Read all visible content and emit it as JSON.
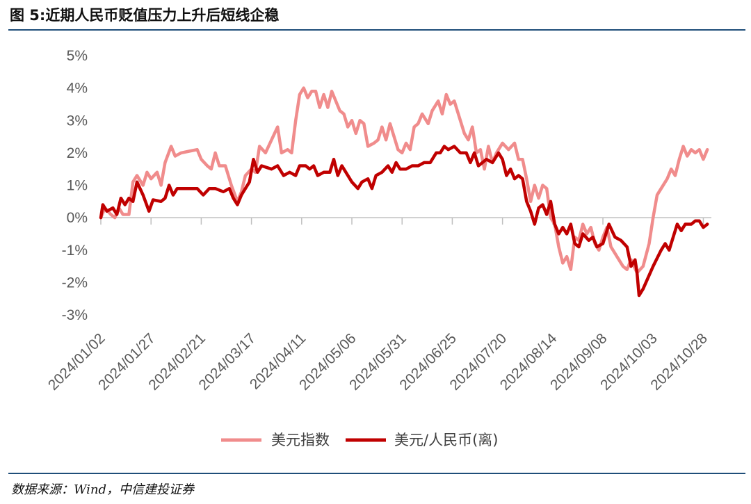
{
  "header": {
    "title": "图 5:近期人民币贬值压力上升后短线企稳"
  },
  "footer": {
    "source": "数据来源：Wind，中信建投证券"
  },
  "chart_data": {
    "type": "line",
    "title": "图 5:近期人民币贬值压力上升后短线企稳",
    "xlabel": "",
    "ylabel": "",
    "ylim": [
      -3,
      5
    ],
    "y_ticks": [
      "5%",
      "4%",
      "3%",
      "2%",
      "1%",
      "0%",
      "-1%",
      "-2%",
      "-3%"
    ],
    "x_ticks": [
      "2024/01/02",
      "2024/01/27",
      "2024/02/21",
      "2024/03/17",
      "2024/04/11",
      "2024/05/06",
      "2024/05/31",
      "2024/06/25",
      "2024/07/20",
      "2024/08/14",
      "2024/09/08",
      "2024/10/03",
      "2024/10/28"
    ],
    "x_range": [
      "2024/01/02",
      "2024/11/01"
    ],
    "grid": false,
    "legend_position": "bottom",
    "series": [
      {
        "name": "美元指数",
        "color": "#f08c8c",
        "points": [
          [
            "2024/01/02",
            0.0
          ],
          [
            "2024/01/04",
            0.3
          ],
          [
            "2024/01/07",
            0.1
          ],
          [
            "2024/01/09",
            0.0
          ],
          [
            "2024/01/11",
            0.3
          ],
          [
            "2024/01/13",
            0.1
          ],
          [
            "2024/01/16",
            0.1
          ],
          [
            "2024/01/18",
            1.1
          ],
          [
            "2024/01/20",
            1.3
          ],
          [
            "2024/01/23",
            1.0
          ],
          [
            "2024/01/25",
            1.4
          ],
          [
            "2024/01/27",
            1.2
          ],
          [
            "2024/01/30",
            1.4
          ],
          [
            "2024/02/01",
            1.0
          ],
          [
            "2024/02/03",
            1.7
          ],
          [
            "2024/02/06",
            2.2
          ],
          [
            "2024/02/08",
            1.9
          ],
          [
            "2024/02/11",
            2.0
          ],
          [
            "2024/02/15",
            2.05
          ],
          [
            "2024/02/19",
            2.1
          ],
          [
            "2024/02/21",
            1.8
          ],
          [
            "2024/02/24",
            1.6
          ],
          [
            "2024/02/26",
            1.5
          ],
          [
            "2024/02/28",
            2.0
          ],
          [
            "2024/03/01",
            1.6
          ],
          [
            "2024/03/04",
            1.6
          ],
          [
            "2024/03/07",
            1.0
          ],
          [
            "2024/03/10",
            0.5
          ],
          [
            "2024/03/12",
            0.8
          ],
          [
            "2024/03/14",
            1.3
          ],
          [
            "2024/03/17",
            1.5
          ],
          [
            "2024/03/19",
            1.4
          ],
          [
            "2024/03/21",
            2.2
          ],
          [
            "2024/03/24",
            2.0
          ],
          [
            "2024/03/27",
            2.4
          ],
          [
            "2024/03/30",
            2.8
          ],
          [
            "2024/04/01",
            2.0
          ],
          [
            "2024/04/04",
            2.1
          ],
          [
            "2024/04/06",
            2.0
          ],
          [
            "2024/04/08",
            3.0
          ],
          [
            "2024/04/10",
            3.8
          ],
          [
            "2024/04/12",
            4.0
          ],
          [
            "2024/04/14",
            3.7
          ],
          [
            "2024/04/16",
            3.9
          ],
          [
            "2024/04/18",
            3.9
          ],
          [
            "2024/04/20",
            3.4
          ],
          [
            "2024/04/22",
            3.8
          ],
          [
            "2024/04/24",
            3.4
          ],
          [
            "2024/04/26",
            3.9
          ],
          [
            "2024/04/28",
            3.6
          ],
          [
            "2024/04/30",
            3.3
          ],
          [
            "2024/05/02",
            3.2
          ],
          [
            "2024/05/04",
            2.8
          ],
          [
            "2024/05/06",
            3.0
          ],
          [
            "2024/05/08",
            2.6
          ],
          [
            "2024/05/10",
            3.0
          ],
          [
            "2024/05/12",
            2.9
          ],
          [
            "2024/05/14",
            2.2
          ],
          [
            "2024/05/17",
            2.3
          ],
          [
            "2024/05/19",
            2.4
          ],
          [
            "2024/05/21",
            2.8
          ],
          [
            "2024/05/23",
            2.4
          ],
          [
            "2024/05/25",
            2.9
          ],
          [
            "2024/05/27",
            2.5
          ],
          [
            "2024/05/29",
            2.1
          ],
          [
            "2024/05/31",
            2.0
          ],
          [
            "2024/06/02",
            2.3
          ],
          [
            "2024/06/04",
            2.1
          ],
          [
            "2024/06/06",
            2.8
          ],
          [
            "2024/06/08",
            2.9
          ],
          [
            "2024/06/10",
            3.2
          ],
          [
            "2024/06/13",
            2.9
          ],
          [
            "2024/06/15",
            3.3
          ],
          [
            "2024/06/18",
            3.6
          ],
          [
            "2024/06/20",
            3.2
          ],
          [
            "2024/06/22",
            3.8
          ],
          [
            "2024/06/24",
            3.5
          ],
          [
            "2024/06/26",
            3.6
          ],
          [
            "2024/06/28",
            3.2
          ],
          [
            "2024/07/01",
            2.6
          ],
          [
            "2024/07/03",
            2.4
          ],
          [
            "2024/07/05",
            2.8
          ],
          [
            "2024/07/07",
            2.0
          ],
          [
            "2024/07/09",
            2.1
          ],
          [
            "2024/07/11",
            1.5
          ],
          [
            "2024/07/13",
            2.2
          ],
          [
            "2024/07/15",
            1.7
          ],
          [
            "2024/07/17",
            2.0
          ],
          [
            "2024/07/20",
            2.3
          ],
          [
            "2024/07/23",
            2.1
          ],
          [
            "2024/07/26",
            2.3
          ],
          [
            "2024/07/28",
            1.8
          ],
          [
            "2024/07/30",
            1.8
          ],
          [
            "2024/08/01",
            1.2
          ],
          [
            "2024/08/03",
            0.5
          ],
          [
            "2024/08/05",
            1.0
          ],
          [
            "2024/08/07",
            0.6
          ],
          [
            "2024/08/09",
            1.0
          ],
          [
            "2024/08/11",
            0.9
          ],
          [
            "2024/08/13",
            0.0
          ],
          [
            "2024/08/15",
            -0.2
          ],
          [
            "2024/08/17",
            -0.9
          ],
          [
            "2024/08/19",
            -1.4
          ],
          [
            "2024/08/21",
            -1.2
          ],
          [
            "2024/08/23",
            -1.6
          ],
          [
            "2024/08/25",
            -0.6
          ],
          [
            "2024/08/27",
            -0.7
          ],
          [
            "2024/08/29",
            -0.2
          ],
          [
            "2024/08/31",
            -0.5
          ],
          [
            "2024/09/02",
            -0.3
          ],
          [
            "2024/09/04",
            -0.8
          ],
          [
            "2024/09/06",
            -1.0
          ],
          [
            "2024/09/08",
            -0.6
          ],
          [
            "2024/09/10",
            -0.3
          ],
          [
            "2024/09/12",
            -0.9
          ],
          [
            "2024/09/14",
            -1.1
          ],
          [
            "2024/09/16",
            -1.3
          ],
          [
            "2024/09/18",
            -1.5
          ],
          [
            "2024/09/20",
            -1.6
          ],
          [
            "2024/09/22",
            -1.3
          ],
          [
            "2024/09/25",
            -1.7
          ],
          [
            "2024/09/28",
            -1.5
          ],
          [
            "2024/10/01",
            -0.8
          ],
          [
            "2024/10/03",
            0.0
          ],
          [
            "2024/10/05",
            0.7
          ],
          [
            "2024/10/08",
            1.0
          ],
          [
            "2024/10/10",
            1.2
          ],
          [
            "2024/10/12",
            1.5
          ],
          [
            "2024/10/14",
            1.3
          ],
          [
            "2024/10/16",
            1.8
          ],
          [
            "2024/10/18",
            2.2
          ],
          [
            "2024/10/20",
            1.9
          ],
          [
            "2024/10/22",
            2.1
          ],
          [
            "2024/10/24",
            2.0
          ],
          [
            "2024/10/26",
            2.1
          ],
          [
            "2024/10/28",
            1.8
          ],
          [
            "2024/10/30",
            2.1
          ]
        ]
      },
      {
        "name": "美元/人民币(离)",
        "color": "#c00000",
        "points": [
          [
            "2024/01/02",
            0.0
          ],
          [
            "2024/01/03",
            0.4
          ],
          [
            "2024/01/05",
            0.2
          ],
          [
            "2024/01/08",
            0.3
          ],
          [
            "2024/01/10",
            0.1
          ],
          [
            "2024/01/12",
            0.6
          ],
          [
            "2024/01/14",
            0.4
          ],
          [
            "2024/01/16",
            0.6
          ],
          [
            "2024/01/18",
            0.5
          ],
          [
            "2024/01/20",
            1.1
          ],
          [
            "2024/01/23",
            0.7
          ],
          [
            "2024/01/26",
            0.2
          ],
          [
            "2024/01/28",
            0.55
          ],
          [
            "2024/02/01",
            0.5
          ],
          [
            "2024/02/03",
            0.6
          ],
          [
            "2024/02/05",
            1.0
          ],
          [
            "2024/02/07",
            0.7
          ],
          [
            "2024/02/09",
            0.9
          ],
          [
            "2024/02/14",
            0.9
          ],
          [
            "2024/02/19",
            0.9
          ],
          [
            "2024/02/22",
            0.7
          ],
          [
            "2024/02/25",
            0.9
          ],
          [
            "2024/02/28",
            0.9
          ],
          [
            "2024/03/03",
            0.8
          ],
          [
            "2024/03/06",
            0.9
          ],
          [
            "2024/03/08",
            0.6
          ],
          [
            "2024/03/10",
            0.4
          ],
          [
            "2024/03/12",
            0.7
          ],
          [
            "2024/03/14",
            0.9
          ],
          [
            "2024/03/16",
            1.1
          ],
          [
            "2024/03/18",
            1.8
          ],
          [
            "2024/03/20",
            1.4
          ],
          [
            "2024/03/22",
            1.6
          ],
          [
            "2024/03/27",
            1.5
          ],
          [
            "2024/03/30",
            1.6
          ],
          [
            "2024/04/02",
            1.3
          ],
          [
            "2024/04/05",
            1.4
          ],
          [
            "2024/04/08",
            1.3
          ],
          [
            "2024/04/10",
            1.6
          ],
          [
            "2024/04/13",
            1.6
          ],
          [
            "2024/04/15",
            1.5
          ],
          [
            "2024/04/17",
            1.6
          ],
          [
            "2024/04/19",
            1.3
          ],
          [
            "2024/04/22",
            1.4
          ],
          [
            "2024/04/25",
            1.4
          ],
          [
            "2024/04/27",
            1.8
          ],
          [
            "2024/04/29",
            1.3
          ],
          [
            "2024/05/01",
            1.6
          ],
          [
            "2024/05/03",
            1.4
          ],
          [
            "2024/05/06",
            1.1
          ],
          [
            "2024/05/09",
            0.9
          ],
          [
            "2024/05/11",
            1.1
          ],
          [
            "2024/05/14",
            1.2
          ],
          [
            "2024/05/16",
            0.9
          ],
          [
            "2024/05/18",
            1.3
          ],
          [
            "2024/05/21",
            1.4
          ],
          [
            "2024/05/24",
            1.6
          ],
          [
            "2024/05/26",
            1.4
          ],
          [
            "2024/05/28",
            1.7
          ],
          [
            "2024/05/30",
            1.5
          ],
          [
            "2024/06/02",
            1.5
          ],
          [
            "2024/06/05",
            1.6
          ],
          [
            "2024/06/08",
            1.6
          ],
          [
            "2024/06/11",
            1.7
          ],
          [
            "2024/06/14",
            1.7
          ],
          [
            "2024/06/17",
            2.0
          ],
          [
            "2024/06/19",
            2.0
          ],
          [
            "2024/06/21",
            2.2
          ],
          [
            "2024/06/23",
            2.1
          ],
          [
            "2024/06/26",
            2.2
          ],
          [
            "2024/06/29",
            2.0
          ],
          [
            "2024/07/02",
            2.0
          ],
          [
            "2024/07/04",
            1.7
          ],
          [
            "2024/07/06",
            2.0
          ],
          [
            "2024/07/08",
            1.6
          ],
          [
            "2024/07/10",
            1.7
          ],
          [
            "2024/07/12",
            1.8
          ],
          [
            "2024/07/15",
            1.7
          ],
          [
            "2024/07/18",
            2.0
          ],
          [
            "2024/07/20",
            1.8
          ],
          [
            "2024/07/22",
            1.3
          ],
          [
            "2024/07/24",
            1.5
          ],
          [
            "2024/07/26",
            1.2
          ],
          [
            "2024/07/28",
            1.3
          ],
          [
            "2024/07/30",
            1.2
          ],
          [
            "2024/08/01",
            0.5
          ],
          [
            "2024/08/03",
            0.2
          ],
          [
            "2024/08/05",
            -0.2
          ],
          [
            "2024/08/07",
            0.3
          ],
          [
            "2024/08/09",
            0.4
          ],
          [
            "2024/08/11",
            0.1
          ],
          [
            "2024/08/13",
            0.5
          ],
          [
            "2024/08/15",
            -0.2
          ],
          [
            "2024/08/17",
            -0.5
          ],
          [
            "2024/08/19",
            -0.3
          ],
          [
            "2024/08/21",
            -0.5
          ],
          [
            "2024/08/23",
            -0.2
          ],
          [
            "2024/08/25",
            -0.8
          ],
          [
            "2024/08/27",
            -0.9
          ],
          [
            "2024/08/29",
            -0.5
          ],
          [
            "2024/09/01",
            -0.7
          ],
          [
            "2024/09/03",
            -0.6
          ],
          [
            "2024/09/05",
            -0.9
          ],
          [
            "2024/09/08",
            -0.8
          ],
          [
            "2024/09/11",
            -0.2
          ],
          [
            "2024/09/14",
            -0.6
          ],
          [
            "2024/09/17",
            -0.7
          ],
          [
            "2024/09/20",
            -0.9
          ],
          [
            "2024/09/22",
            -1.5
          ],
          [
            "2024/09/24",
            -1.3
          ],
          [
            "2024/09/25",
            -1.7
          ],
          [
            "2024/09/26",
            -2.4
          ],
          [
            "2024/09/28",
            -2.2
          ],
          [
            "2024/10/03",
            -1.5
          ],
          [
            "2024/10/07",
            -1.0
          ],
          [
            "2024/10/09",
            -0.8
          ],
          [
            "2024/10/11",
            -1.0
          ],
          [
            "2024/10/13",
            -0.6
          ],
          [
            "2024/10/15",
            -0.2
          ],
          [
            "2024/10/17",
            -0.4
          ],
          [
            "2024/10/19",
            -0.2
          ],
          [
            "2024/10/22",
            -0.2
          ],
          [
            "2024/10/24",
            -0.1
          ],
          [
            "2024/10/26",
            -0.1
          ],
          [
            "2024/10/28",
            -0.3
          ],
          [
            "2024/10/30",
            -0.2
          ]
        ]
      }
    ]
  }
}
